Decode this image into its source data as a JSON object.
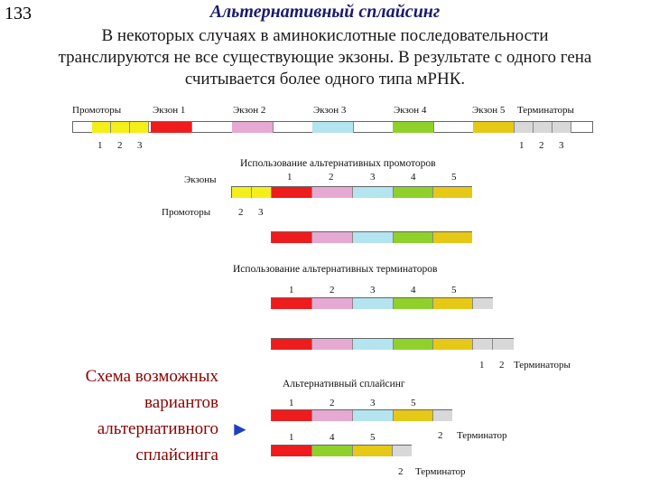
{
  "slide_number": "133",
  "title": "Альтернативный сплайсинг",
  "intro_lines": [
    "В некоторых случаях в аминокислотные последовательности",
    "транслируются не все существующие экзоны. В результате с одного гена",
    "считывается более одного типа мРНК."
  ],
  "colors": {
    "exon1": "#ee1c1c",
    "exon2": "#e6a9d2",
    "exon3": "#b4e4ef",
    "exon4": "#8fd12a",
    "exon5": "#e6c816",
    "prom1": "#f4ef1a",
    "prom2": "#f4ef1a",
    "prom3": "#f4ef1a",
    "term": "#d8d8d8",
    "schema_text": "#8b0000",
    "arrow": "#1f3fbf"
  },
  "gene": {
    "labels": [
      "Промоторы",
      "Экзон 1",
      "Экзон 2",
      "Экзон 3",
      "Экзон 4",
      "Экзон 5",
      "Терминаторы"
    ],
    "promoter_numbers": [
      "1",
      "2",
      "3"
    ],
    "terminator_numbers": [
      "1",
      "2",
      "3"
    ]
  },
  "promoters_section": {
    "title": "Использование альтернативных промоторов",
    "exons_label": "Экзоны",
    "promoters_label": "Промоторы",
    "exon_numbers": [
      "1",
      "2",
      "3",
      "4",
      "5"
    ],
    "promoter_numbers": [
      "2",
      "3"
    ]
  },
  "terminators_section": {
    "title": "Использование альтернативных терминаторов",
    "exon_numbers": [
      "1",
      "2",
      "3",
      "4",
      "5"
    ],
    "term_numbers": [
      "1",
      "2"
    ],
    "term_label": "Терминаторы"
  },
  "splicing_section": {
    "title": "Альтернативный сплайсинг",
    "variant1_numbers": [
      "1",
      "2",
      "3",
      "5"
    ],
    "variant2_numbers": [
      "1",
      "4",
      "5"
    ],
    "variant1_term_number": "2",
    "variant1_term_label": "Терминатор",
    "variant2_term_number": "2",
    "variant2_term_label": "Терминатор"
  },
  "schema_caption_lines": [
    "Схема возможных",
    "вариантов",
    "альтернативного",
    "сплайсинга"
  ],
  "arrow_icon": "►"
}
